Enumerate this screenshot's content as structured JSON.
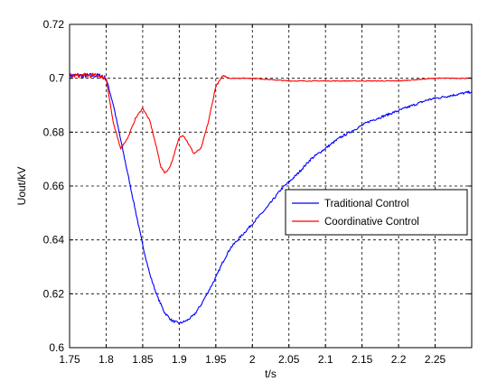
{
  "chart_data": {
    "type": "line",
    "title": "",
    "xlabel": "t/s",
    "ylabel": "Uout/kV",
    "xlim": [
      1.75,
      2.3
    ],
    "ylim": [
      0.6,
      0.72
    ],
    "xticks": [
      "1.75",
      "1.8",
      "1.85",
      "1.9",
      "1.95",
      "2",
      "2.05",
      "2.1",
      "2.15",
      "2.2",
      "2.25"
    ],
    "yticks": [
      "0.6",
      "0.62",
      "0.64",
      "0.66",
      "0.68",
      "0.7",
      "0.72"
    ],
    "grid": true,
    "legend_position": "center-right",
    "series": [
      {
        "name": "Traditional Control",
        "color": "#0000ff",
        "x": [
          1.75,
          1.79,
          1.8,
          1.81,
          1.82,
          1.83,
          1.84,
          1.85,
          1.86,
          1.87,
          1.88,
          1.89,
          1.9,
          1.91,
          1.92,
          1.93,
          1.94,
          1.95,
          1.96,
          1.97,
          1.98,
          1.99,
          2.0,
          2.02,
          2.04,
          2.06,
          2.08,
          2.1,
          2.12,
          2.14,
          2.16,
          2.18,
          2.2,
          2.22,
          2.24,
          2.26,
          2.28,
          2.3
        ],
        "y": [
          0.701,
          0.701,
          0.7,
          0.69,
          0.677,
          0.664,
          0.651,
          0.638,
          0.627,
          0.619,
          0.613,
          0.61,
          0.609,
          0.61,
          0.612,
          0.616,
          0.621,
          0.626,
          0.632,
          0.637,
          0.64,
          0.643,
          0.646,
          0.652,
          0.659,
          0.664,
          0.67,
          0.674,
          0.678,
          0.681,
          0.684,
          0.686,
          0.688,
          0.69,
          0.692,
          0.693,
          0.694,
          0.695
        ]
      },
      {
        "name": "Coordinative Control",
        "color": "#ff0000",
        "x": [
          1.75,
          1.79,
          1.8,
          1.81,
          1.82,
          1.83,
          1.84,
          1.85,
          1.86,
          1.87,
          1.875,
          1.88,
          1.885,
          1.89,
          1.9,
          1.905,
          1.91,
          1.92,
          1.93,
          1.94,
          1.95,
          1.96,
          1.97,
          1.98,
          2.0,
          2.05,
          2.1,
          2.15,
          2.2,
          2.25,
          2.3
        ],
        "y": [
          0.701,
          0.701,
          0.7,
          0.683,
          0.674,
          0.678,
          0.685,
          0.689,
          0.684,
          0.673,
          0.667,
          0.665,
          0.666,
          0.669,
          0.678,
          0.679,
          0.677,
          0.672,
          0.674,
          0.684,
          0.697,
          0.701,
          0.7,
          0.7,
          0.7,
          0.699,
          0.699,
          0.699,
          0.699,
          0.7,
          0.7
        ]
      }
    ]
  }
}
